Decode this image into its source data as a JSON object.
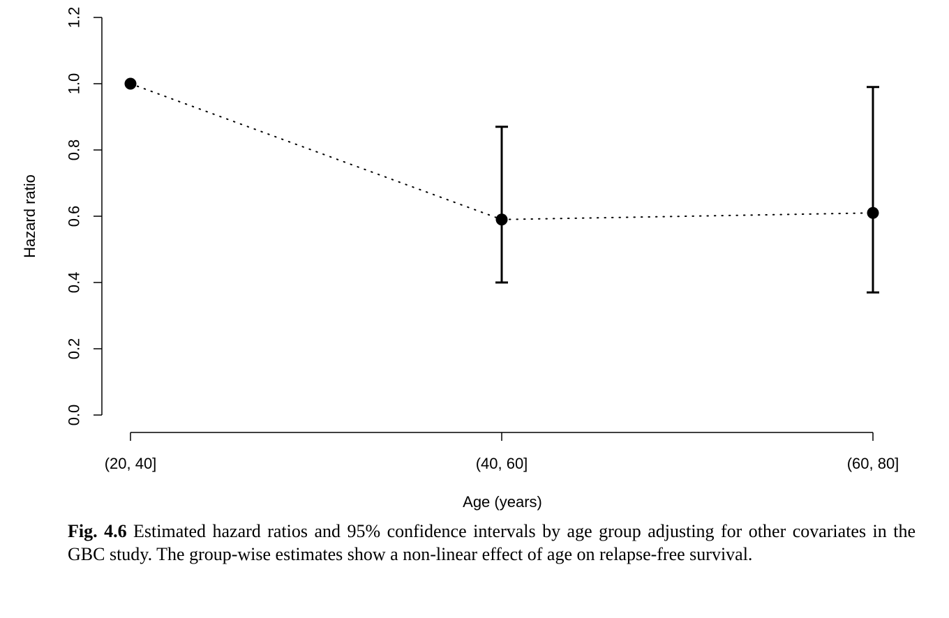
{
  "chart_data": {
    "type": "scatter",
    "categories": [
      "(20, 40]",
      "(40, 60]",
      "(60, 80]"
    ],
    "series": [
      {
        "values": [
          1.0,
          0.59,
          0.61
        ],
        "lower": [
          null,
          0.4,
          0.37
        ],
        "upper": [
          null,
          0.87,
          0.99
        ]
      }
    ],
    "xlabel": "Age (years)",
    "ylabel": "Hazard ratio",
    "ylim": [
      0.0,
      1.2
    ],
    "yticks": [
      "0.0",
      "0.2",
      "0.4",
      "0.6",
      "0.8",
      "1.0",
      "1.2"
    ],
    "connector": "dotted",
    "grid": false
  },
  "caption": {
    "label": "Fig. 4.6",
    "text": "Estimated hazard ratios and 95% confidence intervals by age group adjusting for other covariates in the GBC study. The group-wise estimates show a non-linear effect of age on relapse-free survival."
  }
}
